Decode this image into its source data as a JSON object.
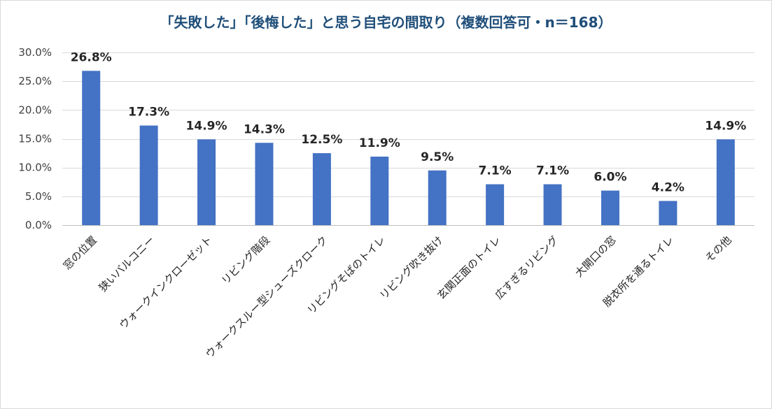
{
  "chart_data": {
    "type": "bar",
    "title": "「失敗した」「後悔した」と思う自宅の間取り（複数回答可・n＝168）",
    "xlabel": "",
    "ylabel": "",
    "categories": [
      "窓の位置",
      "狭いバルコニー",
      "ウォークインクローゼット",
      "リビング階段",
      "ウォークスルー型シューズクローク",
      "リビングそばのトイレ",
      "リビング吹き抜け",
      "玄関正面のトイレ",
      "広すぎるリビング",
      "大開口の窓",
      "脱衣所を通るトイレ",
      "その他"
    ],
    "values": [
      26.8,
      17.3,
      14.9,
      14.3,
      12.5,
      11.9,
      9.5,
      7.1,
      7.1,
      6.0,
      4.2,
      14.9
    ],
    "data_labels": [
      "26.8%",
      "17.3%",
      "14.9%",
      "14.3%",
      "12.5%",
      "11.9%",
      "9.5%",
      "7.1%",
      "7.1%",
      "6.0%",
      "4.2%",
      "14.9%"
    ],
    "ylim": [
      0,
      30
    ],
    "yticks": [
      0,
      5,
      10,
      15,
      20,
      25,
      30
    ],
    "ytick_labels": [
      "0.0%",
      "5.0%",
      "10.0%",
      "15.0%",
      "20.0%",
      "25.0%",
      "30.0%"
    ],
    "grid": true,
    "legend": "none",
    "colors": {
      "bar": "#4472c4",
      "title": "#1f4e79"
    }
  }
}
